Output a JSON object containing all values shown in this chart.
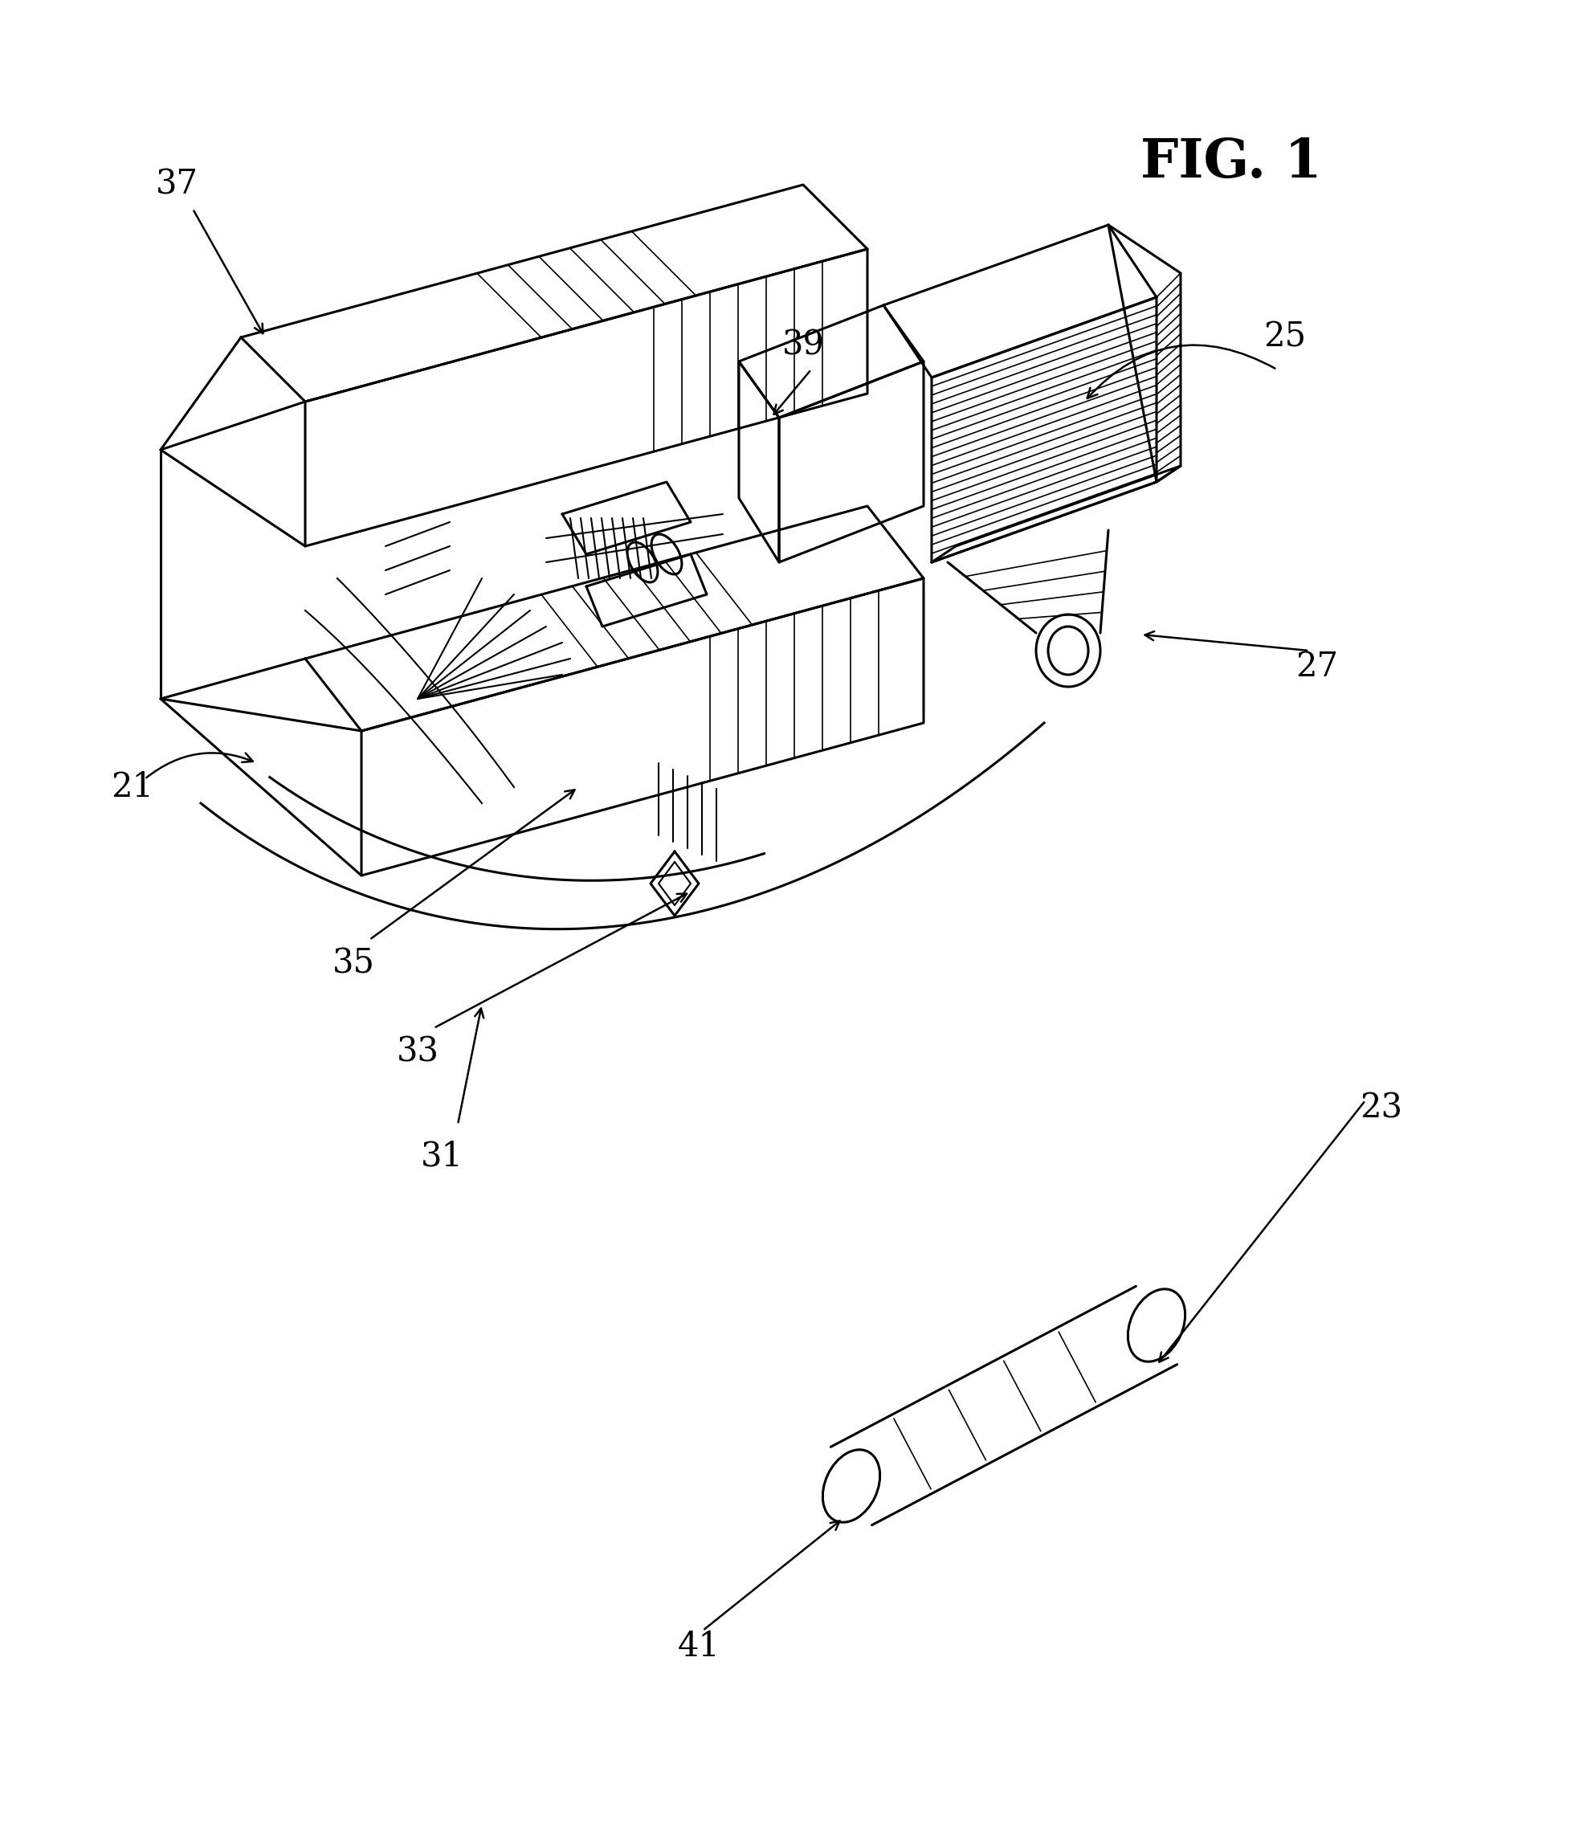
{
  "title": "FIG. 1",
  "bg_color": "#ffffff",
  "line_color": "#000000",
  "lw_main": 2.2,
  "lw_hatch": 1.2,
  "lw_thin": 1.5,
  "fig_width": 19.71,
  "fig_height": 22.92,
  "label_fontsize": 30,
  "title_fontsize": 48
}
